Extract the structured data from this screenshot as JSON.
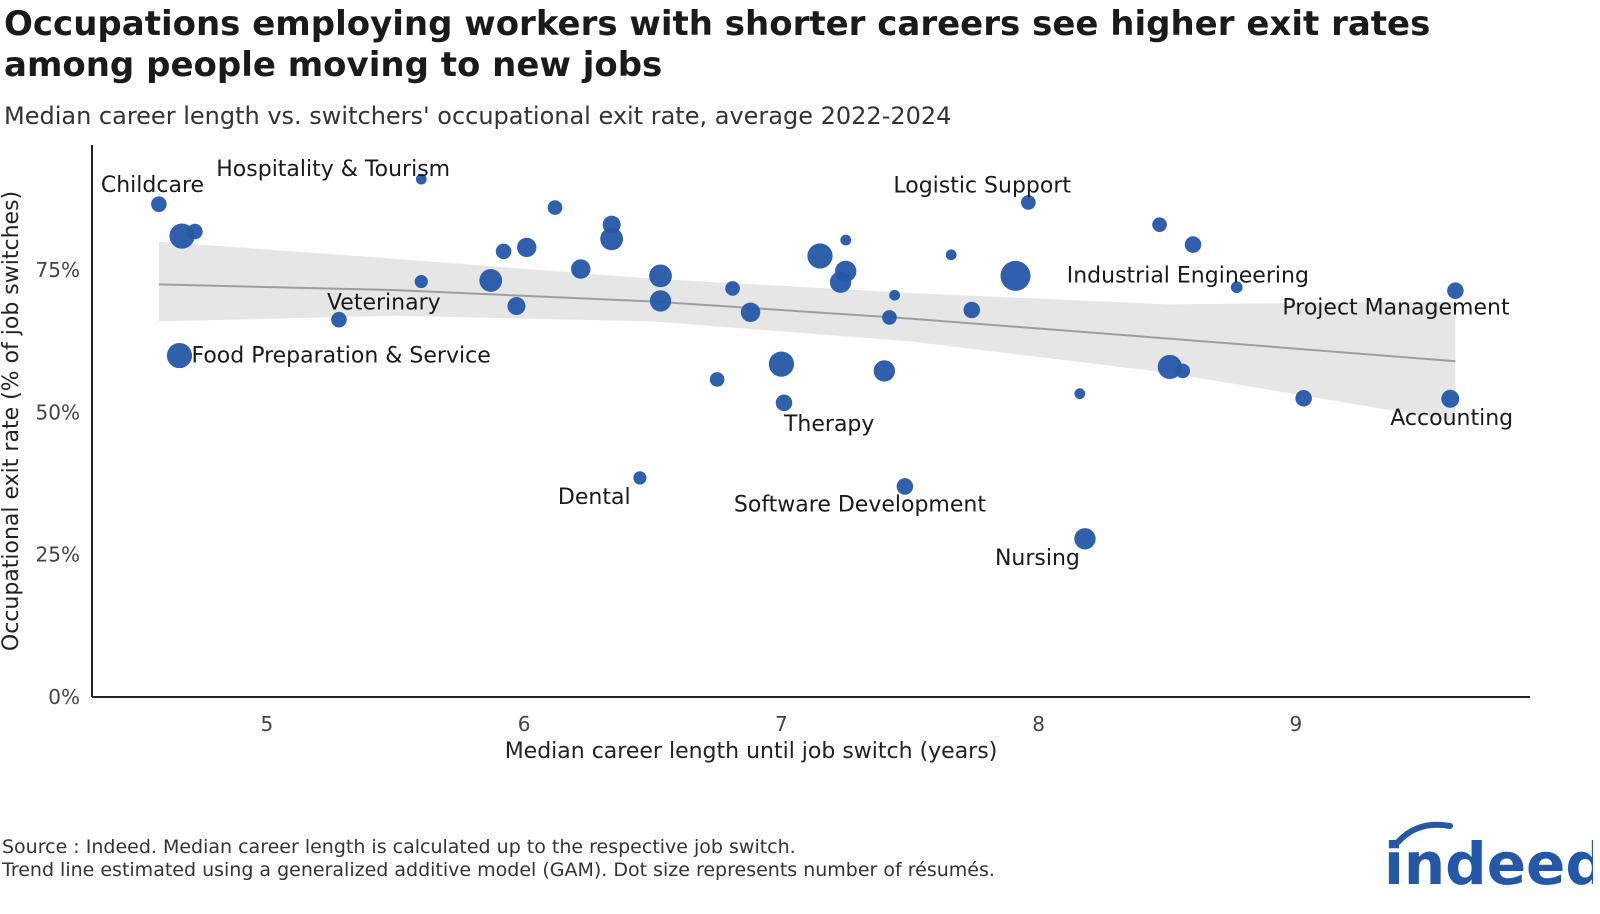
{
  "title": "Occupations employing workers with shorter careers see higher exit rates among people moving to new jobs",
  "subtitle": "Median career length vs. switchers' occupational exit rate, average 2022-2024",
  "footer": {
    "line1": "Source : Indeed. Median career length is calculated up to the respective job switch.",
    "line2": "Trend line estimated using a generalized additive model (GAM). Dot size represents number of résumés."
  },
  "brand": {
    "logo_text": "indeed",
    "color": "#2557a7"
  },
  "chart_data": {
    "type": "scatter",
    "xlabel": "Median career length until job switch (years)",
    "ylabel": "Occupational exit rate (% of job switches)",
    "xlim": [
      4.32,
      9.91
    ],
    "ylim": [
      0,
      97
    ],
    "x_ticks": [
      5,
      6,
      7,
      8,
      9
    ],
    "x_tick_labels": [
      "5",
      "6",
      "7",
      "8",
      "9"
    ],
    "y_ticks": [
      0,
      25,
      50,
      75
    ],
    "y_tick_labels": [
      "0%",
      "25%",
      "50%",
      "75%"
    ],
    "grid": false,
    "legend": "none",
    "point_color": "#2557a7",
    "trend_color": "#9e9e9e",
    "band_color": "#e6e6e6",
    "points": [
      {
        "x": 4.58,
        "y": 86.6,
        "size": 2,
        "label": "Childcare"
      },
      {
        "x": 4.67,
        "y": 81.0,
        "size": 4
      },
      {
        "x": 4.72,
        "y": 81.8,
        "size": 2
      },
      {
        "x": 4.66,
        "y": 60.0,
        "size": 4,
        "label": "Food Preparation & Service"
      },
      {
        "x": 5.28,
        "y": 66.3,
        "size": 2,
        "label": "Veterinary"
      },
      {
        "x": 5.6,
        "y": 91.0,
        "size": 1,
        "label": "Hospitality & Tourism"
      },
      {
        "x": 5.6,
        "y": 73.0,
        "size": 1.5
      },
      {
        "x": 5.87,
        "y": 73.2,
        "size": 3.5
      },
      {
        "x": 5.92,
        "y": 78.3,
        "size": 2
      },
      {
        "x": 5.97,
        "y": 68.7,
        "size": 2.5
      },
      {
        "x": 6.01,
        "y": 79.0,
        "size": 2.8
      },
      {
        "x": 6.12,
        "y": 86.0,
        "size": 1.8
      },
      {
        "x": 6.22,
        "y": 75.2,
        "size": 2.8
      },
      {
        "x": 6.34,
        "y": 83.0,
        "size": 2.5
      },
      {
        "x": 6.34,
        "y": 80.5,
        "size": 3.5
      },
      {
        "x": 6.45,
        "y": 38.5,
        "size": 1.5,
        "label": "Dental"
      },
      {
        "x": 6.53,
        "y": 74.0,
        "size": 3.5
      },
      {
        "x": 6.53,
        "y": 69.6,
        "size": 3.2
      },
      {
        "x": 6.75,
        "y": 55.8,
        "size": 1.8
      },
      {
        "x": 6.81,
        "y": 71.8,
        "size": 1.8
      },
      {
        "x": 6.88,
        "y": 67.6,
        "size": 2.8
      },
      {
        "x": 7.0,
        "y": 58.5,
        "size": 4
      },
      {
        "x": 7.01,
        "y": 51.7,
        "size": 2.2,
        "label": "Therapy"
      },
      {
        "x": 7.15,
        "y": 77.5,
        "size": 4
      },
      {
        "x": 7.23,
        "y": 72.9,
        "size": 3.2
      },
      {
        "x": 7.25,
        "y": 80.3,
        "size": 1
      },
      {
        "x": 7.25,
        "y": 74.8,
        "size": 3.2
      },
      {
        "x": 7.4,
        "y": 57.3,
        "size": 3.2
      },
      {
        "x": 7.42,
        "y": 66.7,
        "size": 1.8
      },
      {
        "x": 7.44,
        "y": 70.6,
        "size": 1
      },
      {
        "x": 7.48,
        "y": 37.0,
        "size": 2.2,
        "label": "Software Development"
      },
      {
        "x": 7.66,
        "y": 77.7,
        "size": 1
      },
      {
        "x": 7.74,
        "y": 68.0,
        "size": 2.2
      },
      {
        "x": 7.91,
        "y": 74.0,
        "size": 5
      },
      {
        "x": 7.96,
        "y": 86.9,
        "size": 1.8,
        "label": "Logistic Support"
      },
      {
        "x": 8.16,
        "y": 53.3,
        "size": 1
      },
      {
        "x": 8.18,
        "y": 27.8,
        "size": 3.2,
        "label": "Nursing"
      },
      {
        "x": 8.47,
        "y": 83.0,
        "size": 1.8
      },
      {
        "x": 8.51,
        "y": 58.0,
        "size": 3.8
      },
      {
        "x": 8.56,
        "y": 57.3,
        "size": 1.8
      },
      {
        "x": 8.6,
        "y": 79.5,
        "size": 2.2
      },
      {
        "x": 8.77,
        "y": 72.0,
        "size": 1.2,
        "label": "Industrial Engineering"
      },
      {
        "x": 9.03,
        "y": 52.5,
        "size": 2.2
      },
      {
        "x": 9.6,
        "y": 52.4,
        "size": 2.5,
        "label": "Accounting"
      },
      {
        "x": 9.62,
        "y": 71.4,
        "size": 2.2,
        "label": "Project Management"
      }
    ],
    "trend": {
      "x": [
        4.58,
        5.5,
        6.5,
        7.5,
        8.5,
        9.62
      ],
      "fit": [
        72.5,
        71.5,
        69.5,
        66.5,
        63.0,
        59.0
      ],
      "lower": [
        66.0,
        67.0,
        66.0,
        62.5,
        57.0,
        48.5
      ],
      "upper": [
        80.0,
        77.0,
        73.5,
        71.0,
        69.0,
        69.5
      ]
    }
  }
}
